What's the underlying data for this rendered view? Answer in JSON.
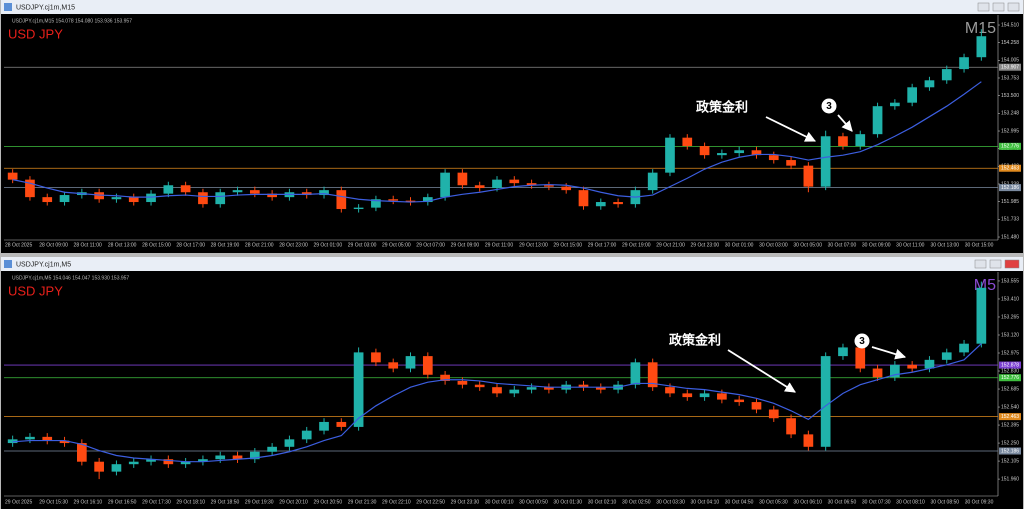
{
  "chart_data": [
    {
      "type": "candlestick",
      "title": "USDJPY.cj1m,M15",
      "info": "USDJPY.cj1m,M15 154.078 154.080 153.936 153.957",
      "symbol": "USD JPY",
      "timeframe": "M15",
      "timeframe_color": "#9a9a9a",
      "up_color": "#20b2aa",
      "down_color": "#ff4a12",
      "open": [
        152.4,
        152.3,
        152.05,
        151.98,
        152.08,
        152.12,
        152.02,
        152.05,
        151.98,
        152.1,
        152.22,
        152.12,
        151.95,
        152.12,
        152.15,
        152.1,
        152.05,
        152.12,
        152.08,
        152.15,
        151.88,
        151.9,
        152.02,
        152.0,
        151.98,
        152.05,
        152.4,
        152.22,
        152.18,
        152.3,
        152.25,
        152.22,
        152.2,
        152.15,
        151.92,
        151.98,
        151.95,
        152.15,
        152.4,
        152.9,
        152.78,
        152.65,
        152.68,
        152.72,
        152.65,
        152.58,
        152.5,
        152.2,
        152.92,
        152.78,
        152.95,
        153.35,
        153.4,
        153.62,
        153.72,
        153.88,
        154.05
      ],
      "high": [
        152.45,
        152.35,
        152.1,
        152.13,
        152.17,
        152.17,
        152.1,
        152.1,
        152.15,
        152.27,
        152.27,
        152.17,
        152.17,
        152.2,
        152.2,
        152.15,
        152.17,
        152.17,
        152.2,
        152.2,
        151.95,
        152.07,
        152.07,
        152.05,
        152.1,
        152.45,
        152.45,
        152.27,
        152.35,
        152.35,
        152.3,
        152.27,
        152.25,
        152.2,
        152.03,
        152.03,
        152.2,
        152.45,
        152.95,
        152.95,
        152.83,
        152.73,
        152.77,
        152.77,
        152.7,
        152.63,
        152.55,
        153.0,
        152.97,
        153.0,
        153.4,
        153.45,
        153.67,
        153.77,
        153.93,
        154.1,
        154.45
      ],
      "low": [
        152.25,
        152.0,
        151.93,
        151.93,
        152.03,
        151.97,
        151.97,
        151.93,
        151.93,
        152.05,
        152.07,
        151.9,
        151.9,
        152.07,
        152.05,
        152.0,
        152.0,
        152.03,
        152.03,
        151.83,
        151.83,
        151.85,
        151.95,
        151.93,
        151.93,
        152.0,
        152.17,
        152.13,
        152.13,
        152.2,
        152.17,
        152.15,
        152.1,
        151.87,
        151.87,
        151.9,
        151.9,
        152.1,
        152.35,
        152.73,
        152.6,
        152.6,
        152.63,
        152.6,
        152.53,
        152.45,
        152.12,
        152.15,
        152.73,
        152.73,
        152.9,
        153.3,
        153.35,
        153.57,
        153.67,
        153.83,
        154.0
      ],
      "close": [
        152.3,
        152.05,
        151.98,
        152.08,
        152.12,
        152.02,
        152.05,
        151.98,
        152.1,
        152.22,
        152.12,
        151.95,
        152.12,
        152.15,
        152.1,
        152.05,
        152.12,
        152.08,
        152.15,
        151.88,
        151.9,
        152.02,
        152.0,
        151.98,
        152.05,
        152.4,
        152.22,
        152.18,
        152.3,
        152.25,
        152.22,
        152.2,
        152.15,
        151.92,
        151.98,
        151.95,
        152.15,
        152.4,
        152.9,
        152.78,
        152.65,
        152.68,
        152.72,
        152.65,
        152.58,
        152.5,
        152.2,
        152.92,
        152.78,
        152.95,
        153.35,
        153.4,
        153.62,
        153.72,
        153.88,
        154.05,
        154.35
      ],
      "ma": {
        "color": "#3c5ee0",
        "values": [
          152.3,
          152.25,
          152.18,
          152.12,
          152.1,
          152.08,
          152.07,
          152.05,
          152.05,
          152.07,
          152.08,
          152.06,
          152.06,
          152.08,
          152.09,
          152.09,
          152.09,
          152.09,
          152.1,
          152.06,
          152.02,
          152.0,
          151.99,
          151.98,
          151.99,
          152.05,
          152.09,
          152.12,
          152.16,
          152.2,
          152.22,
          152.23,
          152.22,
          152.18,
          152.12,
          152.07,
          152.05,
          152.08,
          152.2,
          152.32,
          152.45,
          152.55,
          152.62,
          152.66,
          152.66,
          152.63,
          152.58,
          152.62,
          152.65,
          152.7,
          152.8,
          152.92,
          153.05,
          153.2,
          153.35,
          153.52,
          153.7
        ]
      },
      "ylim": [
        151.466,
        154.639
      ],
      "yticks": [
        {
          "value": 154.51,
          "label": "154.510"
        },
        {
          "value": 154.258,
          "label": "154.258"
        },
        {
          "value": 154.005,
          "label": "154.005"
        },
        {
          "value": 153.753,
          "label": "153.753"
        },
        {
          "value": 153.5,
          "label": "153.500"
        },
        {
          "value": 153.248,
          "label": "153.248"
        },
        {
          "value": 152.995,
          "label": "152.995"
        },
        {
          "value": 152.743,
          "label": "152.743"
        },
        {
          "value": 152.49,
          "label": "152.490"
        },
        {
          "value": 152.238,
          "label": "152.238"
        },
        {
          "value": 151.985,
          "label": "151.985"
        },
        {
          "value": 151.733,
          "label": "151.733"
        },
        {
          "value": 151.48,
          "label": "151.480"
        }
      ],
      "levels": [
        {
          "value": 153.907,
          "color": "#8a8a8a"
        },
        {
          "value": 152.776,
          "color": "#3fbf3f"
        },
        {
          "value": 152.463,
          "color": "#e08a1e"
        },
        {
          "value": 152.186,
          "color": "#7a8aa0"
        }
      ],
      "xtick_labels": [
        "28 Oct 2025",
        "28 Oct 09:00",
        "28 Oct 11:00",
        "28 Oct 13:00",
        "28 Oct 15:00",
        "28 Oct 17:00",
        "28 Oct 19:00",
        "28 Oct 21:00",
        "28 Oct 23:00",
        "29 Oct 01:00",
        "29 Oct 03:00",
        "29 Oct 05:00",
        "29 Oct 07:00",
        "29 Oct 09:00",
        "29 Oct 11:00",
        "29 Oct 13:00",
        "29 Oct 15:00",
        "29 Oct 17:00",
        "29 Oct 19:00",
        "29 Oct 21:00",
        "29 Oct 23:00",
        "30 Oct 01:00",
        "30 Oct 03:00",
        "30 Oct 05:00",
        "30 Oct 07:00",
        "30 Oct 09:00",
        "30 Oct 11:00",
        "30 Oct 13:00",
        "30 Oct 15:00"
      ],
      "annotations": [
        "政策金利",
        "3"
      ]
    },
    {
      "type": "candlestick",
      "title": "USDJPY.cj1m,M5",
      "info": "USDJPY.cj1m,M5 154.046 154.047 153.930 153.957",
      "symbol": "USD JPY",
      "timeframe": "M5",
      "timeframe_color": "#8a4ad0",
      "up_color": "#20b2aa",
      "down_color": "#ff4a12",
      "open": [
        152.25,
        152.28,
        152.3,
        152.27,
        152.25,
        152.1,
        152.02,
        152.08,
        152.1,
        152.12,
        152.08,
        152.1,
        152.12,
        152.15,
        152.12,
        152.18,
        152.22,
        152.28,
        152.35,
        152.42,
        152.38,
        152.98,
        152.9,
        152.85,
        152.95,
        152.8,
        152.75,
        152.72,
        152.7,
        152.65,
        152.68,
        152.7,
        152.68,
        152.72,
        152.7,
        152.68,
        152.72,
        152.9,
        152.7,
        152.65,
        152.62,
        152.65,
        152.6,
        152.58,
        152.52,
        152.45,
        152.32,
        152.22,
        152.95,
        153.02,
        152.85,
        152.78,
        152.88,
        152.85,
        152.92,
        152.98,
        153.05
      ],
      "high": [
        152.31,
        152.33,
        152.33,
        152.3,
        152.28,
        152.13,
        152.11,
        152.13,
        152.15,
        152.15,
        152.13,
        152.15,
        152.18,
        152.18,
        152.21,
        152.25,
        152.31,
        152.38,
        152.45,
        152.45,
        153.02,
        153.01,
        152.93,
        152.98,
        152.98,
        152.83,
        152.78,
        152.75,
        152.73,
        152.71,
        152.73,
        152.73,
        152.75,
        152.75,
        152.73,
        152.75,
        152.93,
        152.93,
        152.73,
        152.68,
        152.68,
        152.68,
        152.63,
        152.61,
        152.55,
        152.48,
        152.35,
        152.98,
        153.05,
        153.05,
        152.88,
        152.91,
        152.91,
        152.95,
        153.01,
        153.08,
        153.55
      ],
      "low": [
        152.22,
        152.25,
        152.24,
        152.22,
        152.07,
        151.96,
        151.99,
        152.05,
        152.07,
        152.05,
        152.05,
        152.07,
        152.09,
        152.09,
        152.09,
        152.15,
        152.19,
        152.25,
        152.32,
        152.35,
        152.35,
        152.87,
        152.82,
        152.82,
        152.77,
        152.72,
        152.69,
        152.67,
        152.62,
        152.62,
        152.65,
        152.65,
        152.65,
        152.67,
        152.65,
        152.65,
        152.69,
        152.67,
        152.62,
        152.59,
        152.59,
        152.57,
        152.55,
        152.49,
        152.42,
        152.29,
        152.19,
        152.19,
        152.92,
        152.82,
        152.75,
        152.75,
        152.82,
        152.82,
        152.89,
        152.95,
        153.02
      ],
      "close": [
        152.28,
        152.3,
        152.27,
        152.25,
        152.1,
        152.02,
        152.08,
        152.1,
        152.12,
        152.08,
        152.1,
        152.12,
        152.15,
        152.12,
        152.18,
        152.22,
        152.28,
        152.35,
        152.42,
        152.38,
        152.98,
        152.9,
        152.85,
        152.95,
        152.8,
        152.75,
        152.72,
        152.7,
        152.65,
        152.68,
        152.7,
        152.68,
        152.72,
        152.7,
        152.68,
        152.72,
        152.9,
        152.7,
        152.65,
        152.62,
        152.65,
        152.6,
        152.58,
        152.52,
        152.45,
        152.32,
        152.22,
        152.95,
        153.02,
        152.85,
        152.78,
        152.88,
        152.85,
        152.92,
        152.98,
        153.05,
        153.5
      ],
      "ma": {
        "color": "#3c5ee0",
        "values": [
          152.26,
          152.27,
          152.27,
          152.27,
          152.24,
          152.19,
          152.15,
          152.13,
          152.12,
          152.11,
          152.1,
          152.1,
          152.11,
          152.12,
          152.13,
          152.15,
          152.18,
          152.22,
          152.27,
          152.31,
          152.45,
          152.55,
          152.63,
          152.7,
          152.74,
          152.76,
          152.76,
          152.75,
          152.73,
          152.72,
          152.71,
          152.7,
          152.7,
          152.7,
          152.7,
          152.7,
          152.73,
          152.73,
          152.71,
          152.69,
          152.68,
          152.66,
          152.64,
          152.61,
          152.57,
          152.51,
          152.44,
          152.55,
          152.65,
          152.72,
          152.76,
          152.8,
          152.82,
          152.85,
          152.88,
          152.92,
          153.05
        ]
      },
      "ylim": [
        151.84,
        153.611
      ],
      "yticks": [
        {
          "value": 153.555,
          "label": "153.555"
        },
        {
          "value": 153.41,
          "label": "153.410"
        },
        {
          "value": 153.265,
          "label": "153.265"
        },
        {
          "value": 153.12,
          "label": "153.120"
        },
        {
          "value": 152.975,
          "label": "152.975"
        },
        {
          "value": 152.83,
          "label": "152.830"
        },
        {
          "value": 152.685,
          "label": "152.685"
        },
        {
          "value": 152.54,
          "label": "152.540"
        },
        {
          "value": 152.395,
          "label": "152.395"
        },
        {
          "value": 152.25,
          "label": "152.250"
        },
        {
          "value": 152.105,
          "label": "152.105"
        },
        {
          "value": 151.96,
          "label": "151.960"
        }
      ],
      "levels": [
        {
          "value": 152.878,
          "color": "#7b3fd0"
        },
        {
          "value": 152.776,
          "color": "#3fbf3f"
        },
        {
          "value": 152.463,
          "color": "#e08a1e"
        },
        {
          "value": 152.186,
          "color": "#7a8aa0"
        }
      ],
      "xtick_labels": [
        "29 Oct 2025",
        "29 Oct 15:30",
        "29 Oct 16:10",
        "29 Oct 16:50",
        "29 Oct 17:30",
        "29 Oct 18:10",
        "29 Oct 18:50",
        "29 Oct 19:30",
        "29 Oct 20:10",
        "29 Oct 20:50",
        "29 Oct 21:30",
        "29 Oct 22:10",
        "29 Oct 22:50",
        "29 Oct 23:30",
        "30 Oct 00:10",
        "30 Oct 00:50",
        "30 Oct 01:30",
        "30 Oct 02:10",
        "30 Oct 02:50",
        "30 Oct 03:30",
        "30 Oct 04:10",
        "30 Oct 04:50",
        "30 Oct 05:30",
        "30 Oct 06:10",
        "30 Oct 06:50",
        "30 Oct 07:30",
        "30 Oct 08:10",
        "30 Oct 08:50",
        "30 Oct 09:30"
      ],
      "annotations": [
        "政策金利",
        "3"
      ]
    }
  ]
}
